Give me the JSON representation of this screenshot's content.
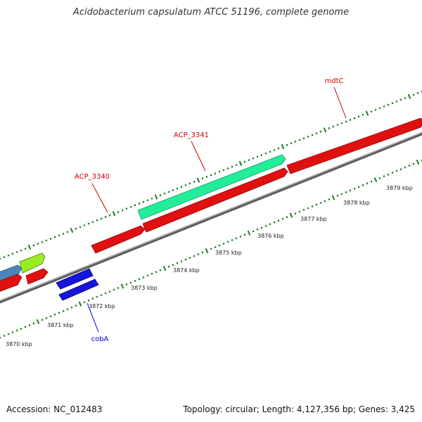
{
  "title": "Acidobacterium capsulatum ATCC 51196, complete genome",
  "footer": {
    "accession": "Accession: NC_012483",
    "summary": "Topology: circular; Length: 4,127,356 bp; Genes: 3,425"
  },
  "colors": {
    "backbone": "#808080",
    "tick_mark": "#1e7a1e",
    "gene_forward": "#ee1111",
    "gene_forward_dark": "#aa0000",
    "gene_reverse": "#1515dd",
    "gene_highlight": "#22ee99",
    "gene_steelblue": "#4a86b8",
    "gene_lime": "#99ee22",
    "label_forward": "#cc0000",
    "label_reverse": "#0000cc"
  },
  "tick_labels": [
    "3870 kbp",
    "3871 kbp",
    "3872 kbp",
    "3873 kbp",
    "3874 kbp",
    "3875 kbp",
    "3876 kbp",
    "3877 kbp",
    "3878 kbp",
    "3879 kbp"
  ],
  "genes": [
    {
      "name": "ACP_3340",
      "color_key": "label_forward"
    },
    {
      "name": "ACP_3341",
      "color_key": "label_forward"
    },
    {
      "name": "mdtC",
      "color_key": "label_forward"
    },
    {
      "name": "cobA",
      "color_key": "label_reverse"
    }
  ]
}
